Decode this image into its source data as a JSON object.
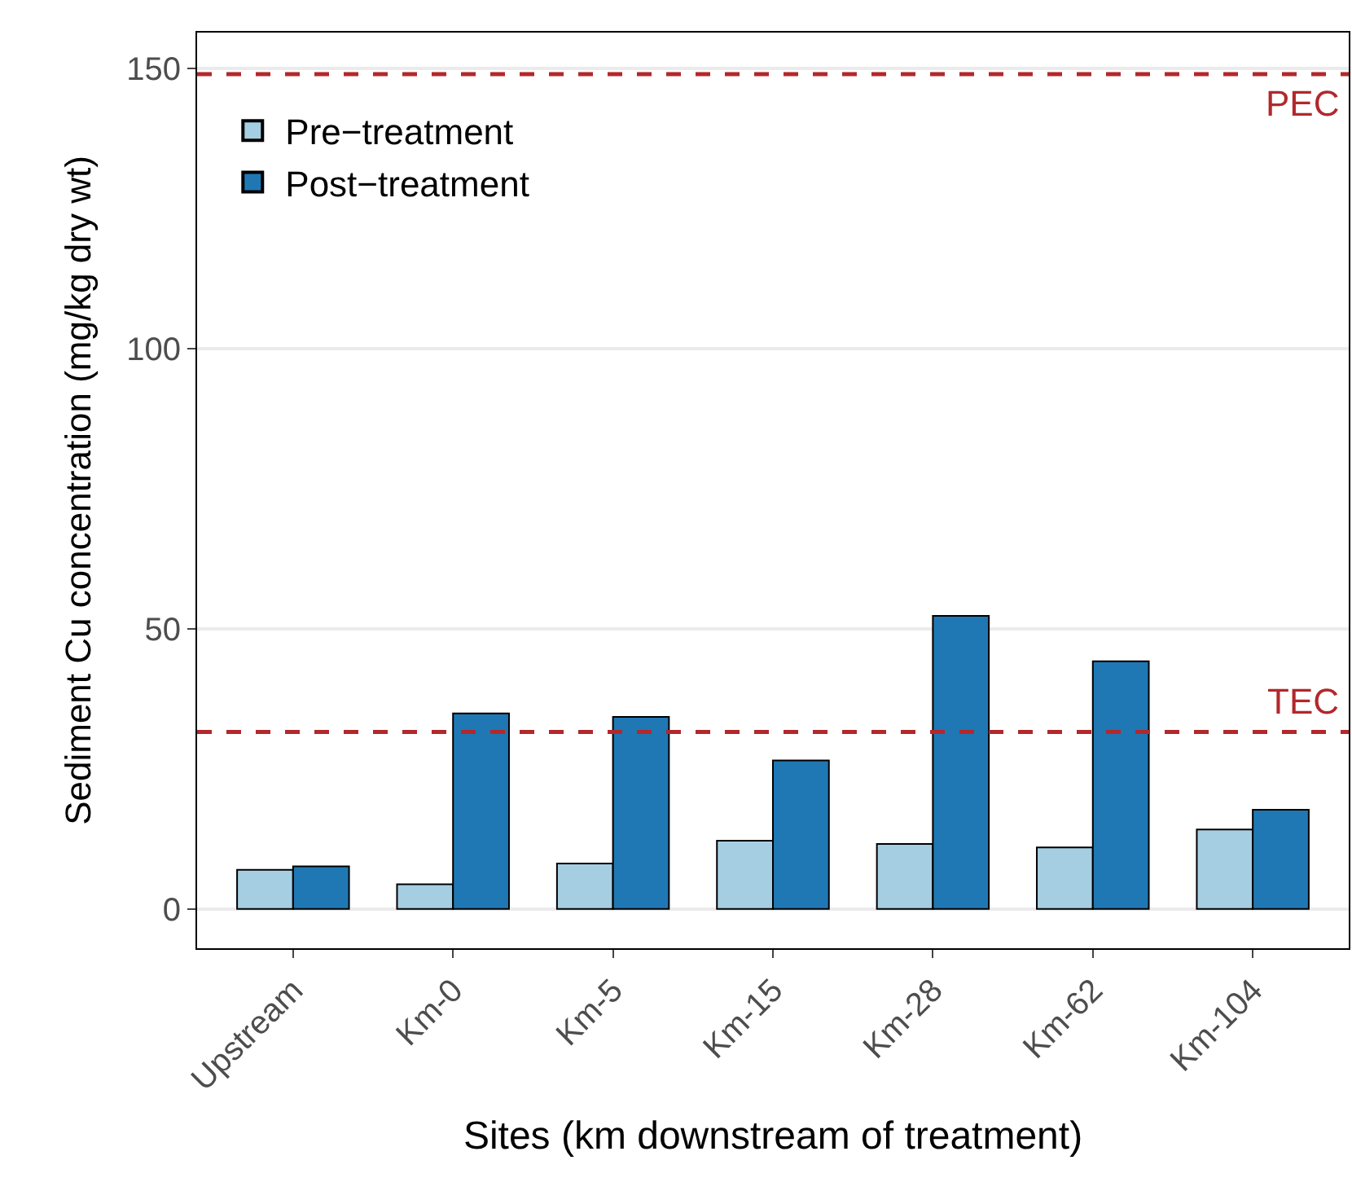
{
  "chart_data": {
    "type": "bar",
    "xlabel": "Sites (km downstream of treatment)",
    "ylabel": "Sediment Cu concentration (mg/kg dry wt)",
    "categories": [
      "Upstream",
      "Km-0",
      "Km-5",
      "Km-15",
      "Km-28",
      "Km-62",
      "Km-104"
    ],
    "series": [
      {
        "name": "Pre−treatment",
        "color": "#a6cee3",
        "values": [
          7.0,
          4.4,
          8.1,
          12.2,
          11.6,
          11.0,
          14.2
        ]
      },
      {
        "name": "Post−treatment",
        "color": "#1f78b4",
        "values": [
          7.6,
          34.9,
          34.3,
          26.5,
          52.3,
          44.2,
          17.7
        ]
      }
    ],
    "ylim": [
      -7,
      156.4
    ],
    "yticks": [
      0,
      50,
      100,
      150
    ],
    "grid": "y",
    "legend": "top left",
    "ref_lines": [
      {
        "axis": "y",
        "value": 149,
        "label": "PEC",
        "color": "#b2282c",
        "line_style": "dashed"
      },
      {
        "axis": "y",
        "value": 31.6,
        "label": "TEC",
        "color": "#b2282c",
        "line_style": "dashed"
      }
    ]
  }
}
